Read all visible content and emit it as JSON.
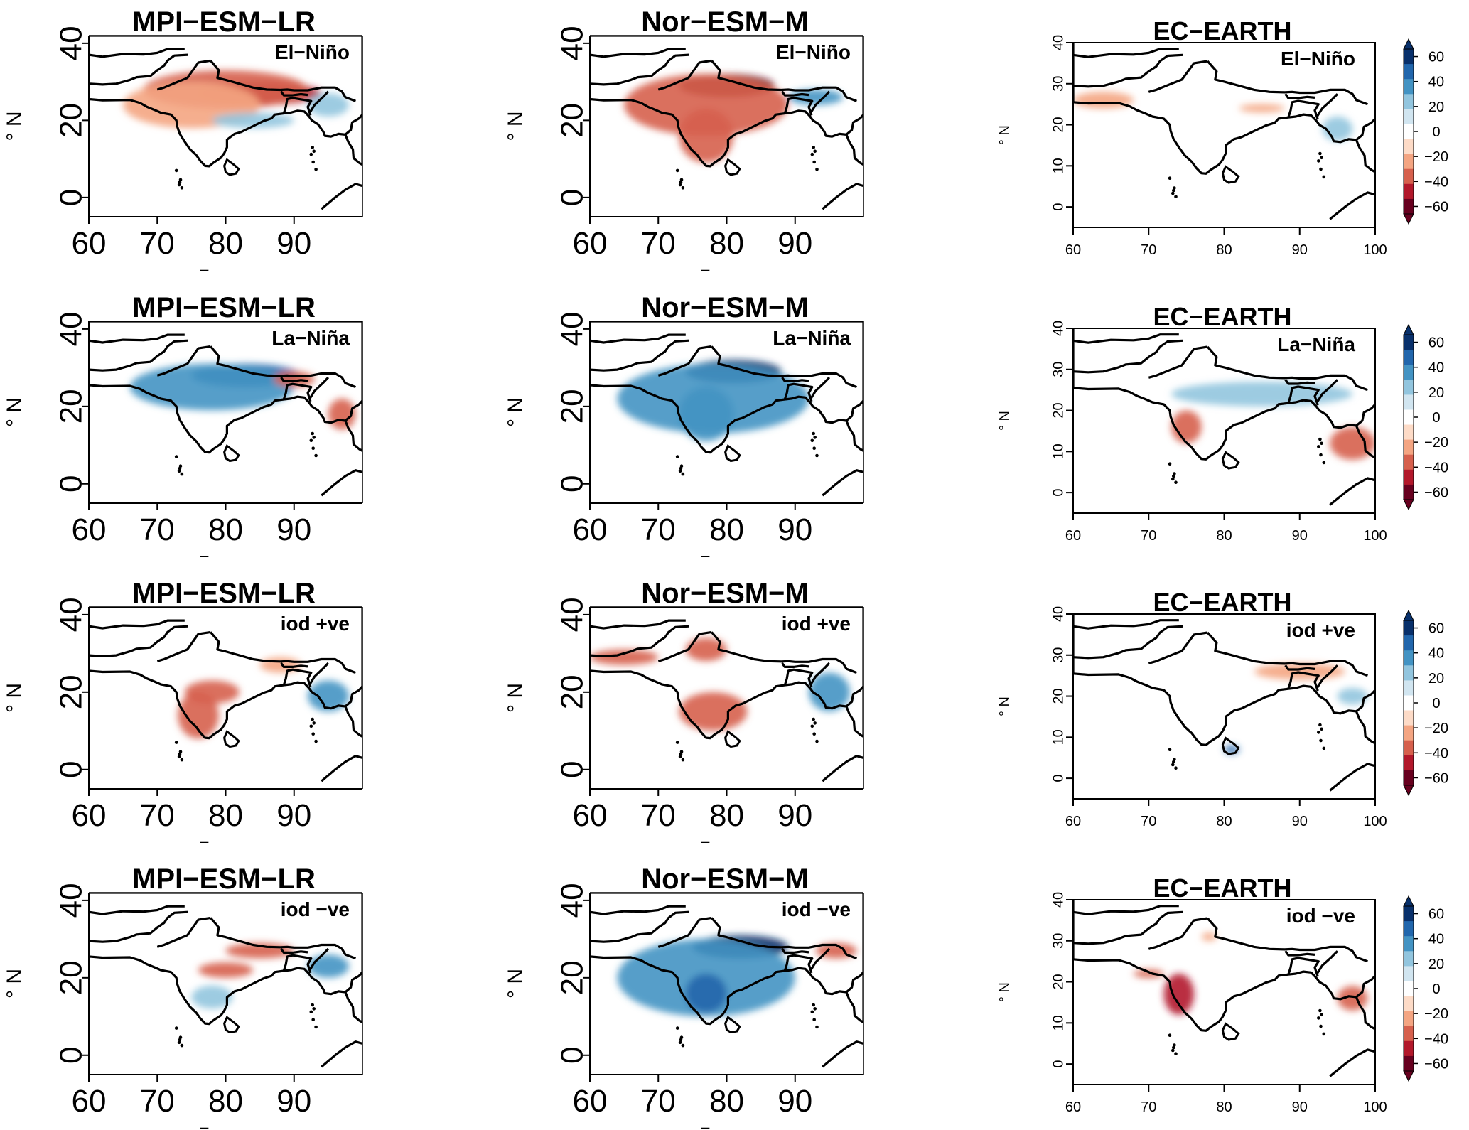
{
  "figure": {
    "models": [
      "MPI−ESM−LR",
      "Nor−ESM−M",
      "EC−EARTH"
    ],
    "phases": [
      "El−Niño",
      "La−Niña",
      "iod +ve",
      "iod −ve"
    ]
  },
  "axes": {
    "ylabel": "° N",
    "xlabel_mark": "_",
    "big": {
      "x_ticks": [
        "60",
        "70",
        "80",
        "90"
      ],
      "y_ticks": [
        "0",
        "20",
        "40"
      ]
    },
    "small": {
      "x_ticks": [
        "60",
        "70",
        "80",
        "90",
        "100"
      ],
      "y_ticks": [
        "0",
        "10",
        "20",
        "30",
        "40"
      ]
    }
  },
  "colorbar": {
    "ticks": [
      "60",
      "40",
      "20",
      "0",
      "−20",
      "−40",
      "−60"
    ],
    "colors": [
      "#08306b",
      "#2166ac",
      "#4393c3",
      "#92c5de",
      "#d1e5f0",
      "#ffffff",
      "#fddbc7",
      "#f4a582",
      "#d6604d",
      "#b2182b",
      "#67001f"
    ]
  },
  "map_data": {
    "extent": {
      "lon": [
        60,
        100
      ],
      "lat": [
        0,
        40
      ]
    },
    "anomalies": [
      {
        "model": "MPI−ESM−LR",
        "phase": "El−Niño",
        "blobs": [
          [
            85,
            27,
            9,
            3,
            -45
          ],
          [
            80,
            28,
            12,
            5,
            -25
          ],
          [
            75,
            24,
            10,
            6,
            -15
          ],
          [
            84,
            20,
            6,
            2,
            15
          ],
          [
            95,
            24,
            3,
            3,
            15
          ]
        ]
      },
      {
        "model": "Nor−ESM−M",
        "phase": "El−Niño",
        "blobs": [
          [
            80,
            29,
            7,
            3,
            -50
          ],
          [
            77,
            24,
            12,
            8,
            -25
          ],
          [
            77,
            16,
            4,
            7,
            -30
          ],
          [
            93,
            26,
            4,
            2,
            30
          ]
        ]
      },
      {
        "model": "EC−EARTH",
        "phase": "El−Niño",
        "blobs": [
          [
            64,
            26,
            4,
            2,
            -15
          ],
          [
            85,
            24,
            3,
            1,
            -15
          ],
          [
            95,
            19,
            2,
            3,
            15
          ]
        ]
      },
      {
        "model": "MPI−ESM−LR",
        "phase": "La−Niña",
        "blobs": [
          [
            83,
            28,
            8,
            3,
            45
          ],
          [
            78,
            25,
            12,
            6,
            20
          ],
          [
            97,
            18,
            2,
            4,
            -20
          ],
          [
            90,
            27,
            3,
            2,
            -20
          ]
        ]
      },
      {
        "model": "Nor−ESM−M",
        "phase": "La−Niña",
        "blobs": [
          [
            81,
            29,
            7,
            3,
            55
          ],
          [
            78,
            22,
            14,
            9,
            25
          ],
          [
            77,
            18,
            4,
            7,
            30
          ]
        ]
      },
      {
        "model": "EC−EARTH",
        "phase": "La−Niña",
        "blobs": [
          [
            75,
            16,
            2,
            4,
            -30
          ],
          [
            85,
            24,
            12,
            3,
            15
          ],
          [
            97,
            12,
            3,
            4,
            -25
          ]
        ]
      },
      {
        "model": "MPI−ESM−LR",
        "phase": "iod +ve",
        "blobs": [
          [
            78,
            20,
            4,
            3,
            -20
          ],
          [
            76,
            14,
            3,
            6,
            -20
          ],
          [
            88,
            27,
            3,
            2,
            -15
          ],
          [
            95,
            19,
            3,
            4,
            20
          ]
        ]
      },
      {
        "model": "Nor−ESM−M",
        "phase": "iod +ve",
        "blobs": [
          [
            77,
            31,
            3,
            3,
            -30
          ],
          [
            65,
            29,
            5,
            2,
            -20
          ],
          [
            78,
            15,
            5,
            5,
            -20
          ],
          [
            95,
            20,
            3,
            5,
            25
          ]
        ]
      },
      {
        "model": "EC−EARTH",
        "phase": "iod +ve",
        "blobs": [
          [
            90,
            26,
            6,
            2,
            -15
          ],
          [
            81,
            7,
            1,
            1,
            45
          ],
          [
            97,
            20,
            2,
            2,
            15
          ]
        ]
      },
      {
        "model": "MPI−ESM−LR",
        "phase": "iod −ve",
        "blobs": [
          [
            85,
            27,
            5,
            2,
            -25
          ],
          [
            80,
            22,
            4,
            2,
            -20
          ],
          [
            95,
            23,
            3,
            3,
            20
          ],
          [
            78,
            15,
            3,
            3,
            15
          ]
        ]
      },
      {
        "model": "Nor−ESM−M",
        "phase": "iod −ve",
        "blobs": [
          [
            82,
            28,
            7,
            3,
            50
          ],
          [
            77,
            20,
            13,
            10,
            25
          ],
          [
            77,
            16,
            3,
            5,
            35
          ],
          [
            96,
            27,
            3,
            2,
            -25
          ]
        ]
      },
      {
        "model": "EC−EARTH",
        "phase": "iod −ve",
        "blobs": [
          [
            74,
            17,
            2,
            5,
            -40
          ],
          [
            70,
            22,
            2,
            1,
            -30
          ],
          [
            78,
            31,
            1,
            1,
            -15
          ],
          [
            97,
            16,
            2,
            3,
            -25
          ]
        ]
      }
    ]
  }
}
